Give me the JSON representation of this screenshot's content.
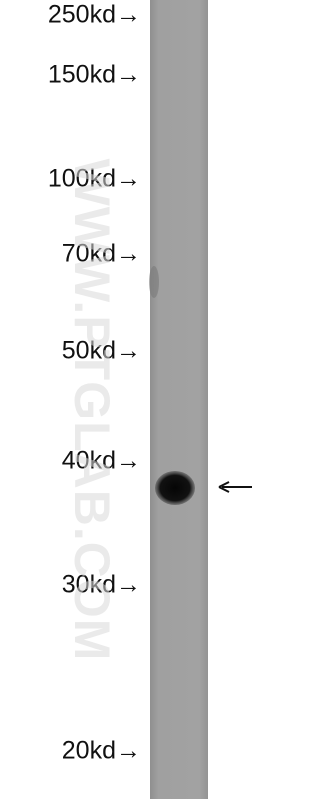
{
  "markers": [
    "250kd→",
    "150kd→",
    "100kd→",
    "70kd→",
    "50kd→",
    "40kd→",
    "30kd→",
    "20kd→"
  ],
  "watermark": "WWW.PTGLAB.COM"
}
